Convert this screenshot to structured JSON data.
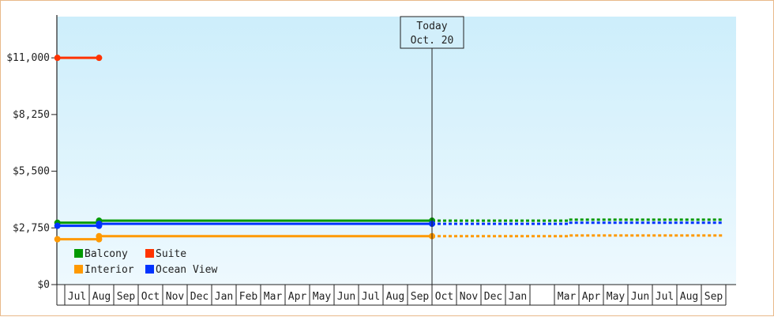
{
  "chart_data": {
    "type": "line",
    "title": "",
    "xlabel": "",
    "ylabel": "",
    "ylim": [
      0,
      13000
    ],
    "y_ticks": [
      0,
      2750,
      5500,
      8250,
      11000
    ],
    "y_tick_labels": [
      "$0",
      "$2,750",
      "$5,500",
      "$8,250",
      "$11,000"
    ],
    "x_months": [
      "Jul",
      "Aug",
      "Sep",
      "Oct",
      "Nov",
      "Dec",
      "Jan",
      "Feb",
      "Mar",
      "Apr",
      "May",
      "Jun",
      "Jul",
      "Aug",
      "Sep",
      "Oct",
      "Nov",
      "Dec",
      "Jan",
      "",
      "Mar",
      "Apr",
      "May",
      "Jun",
      "Jul",
      "Aug",
      "Sep"
    ],
    "today": {
      "line1": "Today",
      "line2": "Oct. 20",
      "month_index": 15.0
    },
    "plot_background": [
      "#cdeefb",
      "#eef9fe"
    ],
    "grid": false,
    "legend_position": "bottom-left",
    "series": [
      {
        "name": "Suite",
        "color": "#ff3300",
        "points": [
          [
            -0.3,
            11000
          ],
          [
            1.4,
            11000
          ]
        ],
        "forecast": []
      },
      {
        "name": "Balcony",
        "color": "#009900",
        "points": [
          [
            -0.3,
            3000
          ],
          [
            1.4,
            3000
          ],
          [
            1.4,
            3100
          ],
          [
            15.0,
            3100
          ]
        ],
        "forecast": [
          [
            15.0,
            3100
          ],
          [
            20.6,
            3100
          ],
          [
            20.6,
            3150
          ],
          [
            26.9,
            3150
          ]
        ]
      },
      {
        "name": "Ocean View",
        "color": "#0033ff",
        "points": [
          [
            -0.3,
            2850
          ],
          [
            1.4,
            2850
          ],
          [
            1.4,
            2950
          ],
          [
            15.0,
            2950
          ]
        ],
        "forecast": [
          [
            15.0,
            2950
          ],
          [
            20.6,
            2950
          ],
          [
            20.6,
            3000
          ],
          [
            26.9,
            3000
          ]
        ]
      },
      {
        "name": "Interior",
        "color": "#ff9900",
        "points": [
          [
            -0.3,
            2200
          ],
          [
            1.4,
            2200
          ],
          [
            1.4,
            2350
          ],
          [
            15.0,
            2350
          ]
        ],
        "forecast": [
          [
            15.0,
            2350
          ],
          [
            20.6,
            2350
          ],
          [
            20.6,
            2380
          ],
          [
            26.9,
            2380
          ]
        ]
      }
    ],
    "markers": [
      {
        "series": "Suite",
        "x": -0.3,
        "y": 11000
      },
      {
        "series": "Suite",
        "x": 1.4,
        "y": 11000
      },
      {
        "series": "Balcony",
        "x": -0.3,
        "y": 3000
      },
      {
        "series": "Balcony",
        "x": 1.4,
        "y": 3000
      },
      {
        "series": "Balcony",
        "x": 1.4,
        "y": 3100
      },
      {
        "series": "Balcony",
        "x": 15.0,
        "y": 3100
      },
      {
        "series": "Ocean View",
        "x": -0.3,
        "y": 2850
      },
      {
        "series": "Ocean View",
        "x": 1.4,
        "y": 2850
      },
      {
        "series": "Ocean View",
        "x": 1.4,
        "y": 2950
      },
      {
        "series": "Ocean View",
        "x": 15.0,
        "y": 2950
      },
      {
        "series": "Interior",
        "x": -0.3,
        "y": 2200
      },
      {
        "series": "Interior",
        "x": 1.4,
        "y": 2200
      },
      {
        "series": "Interior",
        "x": 1.4,
        "y": 2350
      },
      {
        "series": "Interior",
        "x": 15.0,
        "y": 2350
      }
    ],
    "legend": [
      {
        "name": "Balcony",
        "color": "#009900"
      },
      {
        "name": "Suite",
        "color": "#ff3300"
      },
      {
        "name": "Interior",
        "color": "#ff9900"
      },
      {
        "name": "Ocean View",
        "color": "#0033ff"
      }
    ]
  }
}
